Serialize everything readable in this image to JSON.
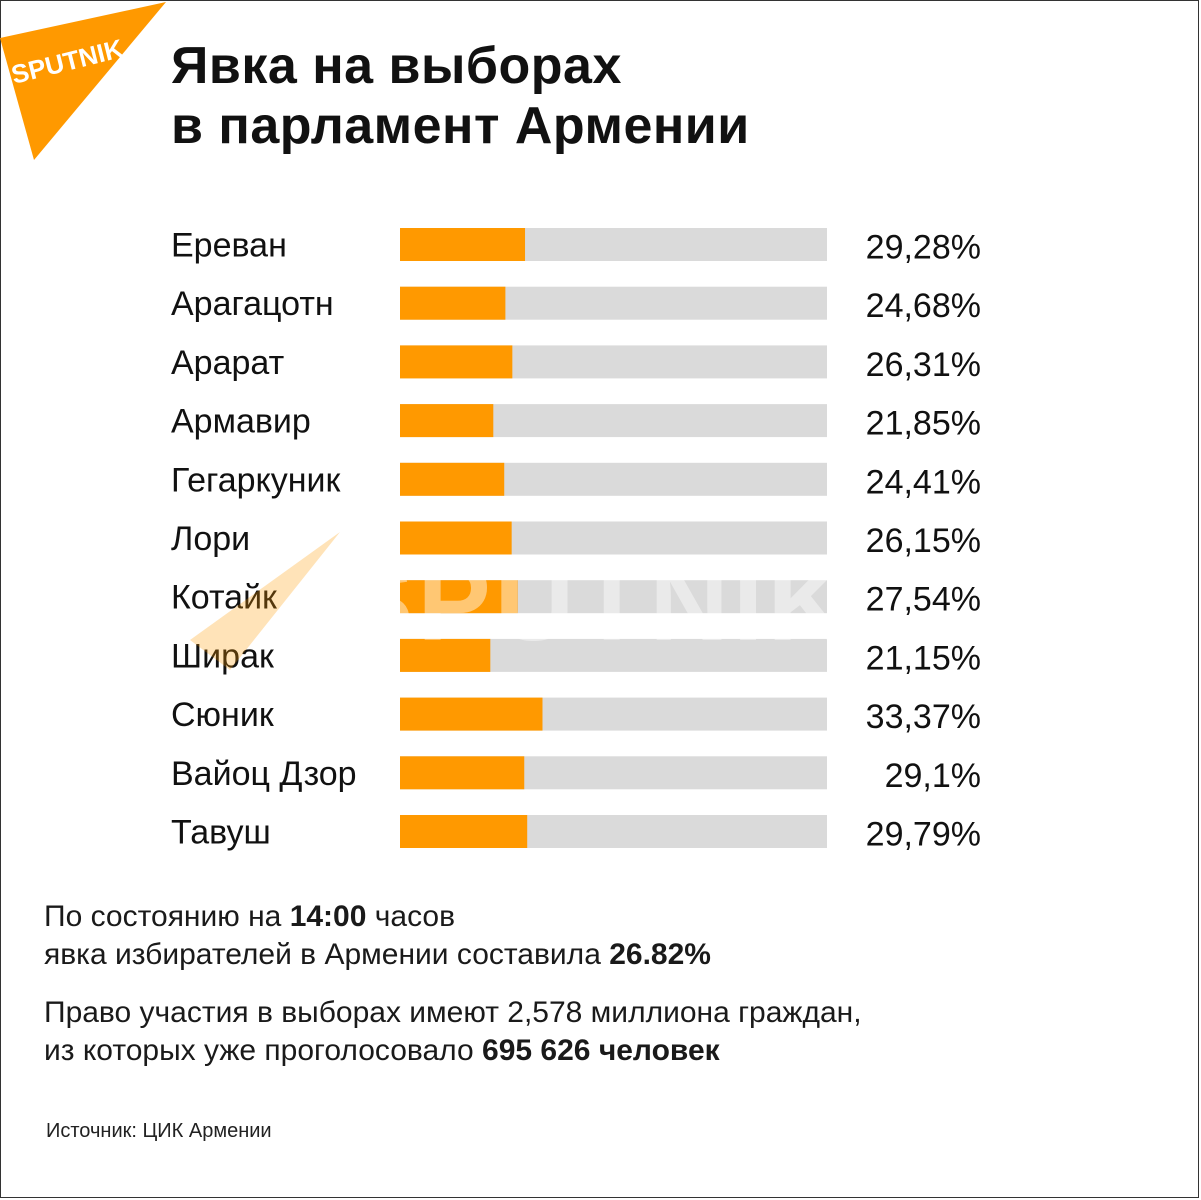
{
  "brand": {
    "logo_text": "SPUTNIK",
    "watermark_text": "SPUTNIK",
    "accent_color": "#FF9900",
    "track_color": "#DADADA"
  },
  "title": {
    "line1": "Явка на выборах",
    "line2": "в парламент Армении"
  },
  "chart_data": {
    "type": "bar",
    "orientation": "horizontal",
    "categories": [
      "Ереван",
      "Арагацотн",
      "Арарат",
      "Армавир",
      "Гегаркуник",
      "Лори",
      "Котайк",
      "Ширак",
      "Сюник",
      "Вайоц Дзор",
      "Тавуш"
    ],
    "values": [
      29.28,
      24.68,
      26.31,
      21.85,
      24.41,
      26.15,
      27.54,
      21.15,
      33.37,
      29.1,
      29.79
    ],
    "value_labels": [
      "29,28%",
      "24,68%",
      "26,31%",
      "21,85%",
      "24,41%",
      "26,15%",
      "27,54%",
      "21,15%",
      "33,37%",
      "29,1%",
      "29,79%"
    ],
    "xlim": [
      0,
      100
    ],
    "grid": false,
    "legend": "none"
  },
  "info1": {
    "prefix": "По состоянию на ",
    "time": "14:00",
    "suffix": " часов",
    "line2_prefix": "явка избирателей в Армении составила ",
    "total": "26.82%"
  },
  "info2": {
    "line1": "Право участия в выборах имеют 2,578 миллиона граждан,",
    "line2_prefix": "из которых уже проголосовало ",
    "voted": "695 626 человек"
  },
  "source": "Источник: ЦИК Армении"
}
